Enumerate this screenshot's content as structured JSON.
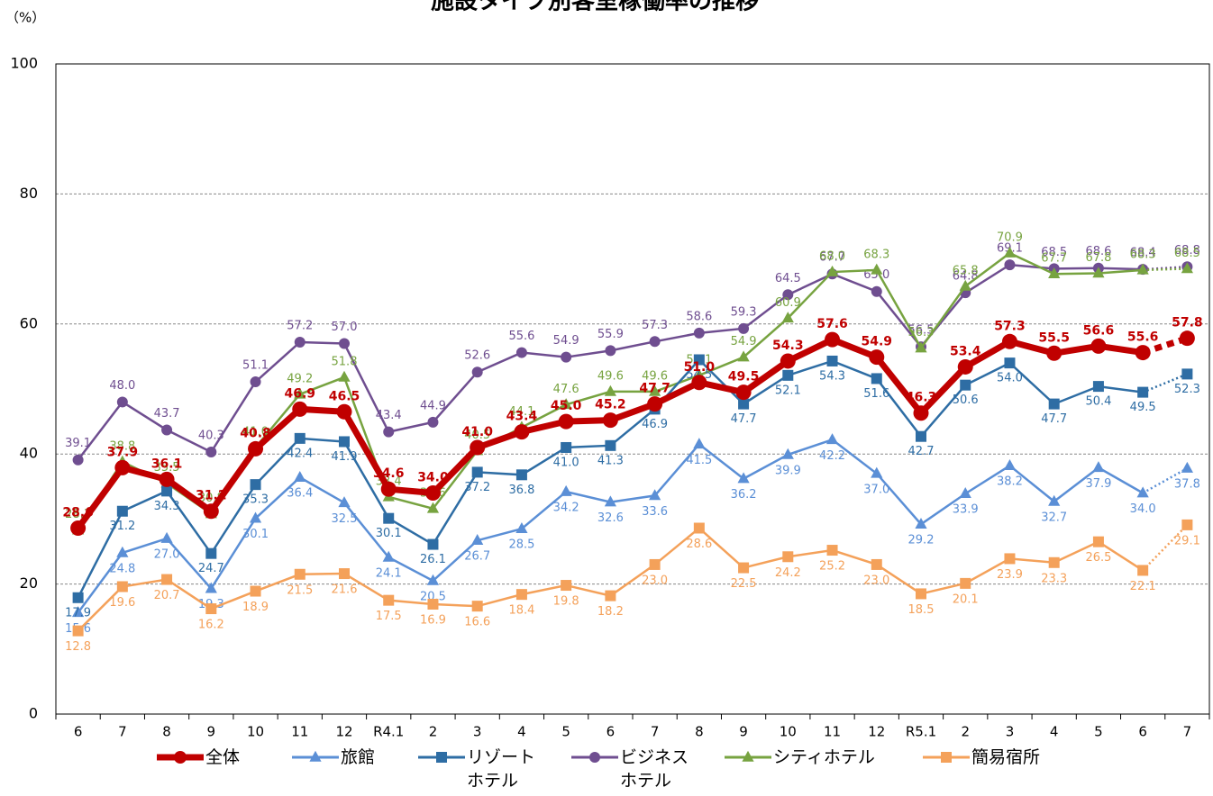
{
  "chart_data": {
    "type": "line",
    "title": "施設タイプ別客室稼働率の推移",
    "y_unit": "（%）",
    "categories": [
      "6",
      "7",
      "8",
      "9",
      "10",
      "11",
      "12",
      "R4.1",
      "2",
      "3",
      "4",
      "5",
      "6",
      "7",
      "8",
      "9",
      "10",
      "11",
      "12",
      "R5.1",
      "2",
      "3",
      "4",
      "5",
      "6",
      "7"
    ],
    "ylim": [
      0,
      100
    ],
    "yticks": [
      0,
      20,
      40,
      60,
      80,
      100
    ],
    "grid": true,
    "series": [
      {
        "name": "全体",
        "color": "#c00000",
        "marker": "circle",
        "values": [
          28.6,
          37.9,
          36.1,
          31.2,
          40.8,
          46.9,
          46.5,
          34.6,
          34.0,
          41.0,
          43.4,
          45.0,
          45.2,
          47.7,
          51.0,
          49.5,
          54.3,
          57.6,
          54.9,
          46.3,
          53.4,
          57.3,
          55.5,
          56.6,
          55.6,
          57.8
        ],
        "value_labels": [
          "28.6",
          "37.9",
          "36.1",
          "31.2",
          "40.8",
          "46.9",
          "46.5",
          "34.6",
          "34.0",
          "41.0",
          "43.4",
          "45.0",
          "45.2",
          "47.7",
          "51.0",
          "49.5",
          "54.3",
          "57.6",
          "54.9",
          "46.3",
          "53.4",
          "57.3",
          "55.5",
          "56.6",
          "55.6",
          "57.8"
        ]
      },
      {
        "name": "旅館",
        "color": "#5b8fd6",
        "marker": "triangle",
        "values": [
          15.6,
          24.8,
          27.0,
          19.3,
          30.1,
          36.4,
          32.5,
          24.1,
          20.5,
          26.7,
          28.5,
          34.2,
          32.6,
          33.6,
          41.5,
          36.2,
          39.9,
          42.2,
          37.0,
          29.2,
          33.9,
          38.2,
          32.7,
          37.9,
          34.0,
          37.8
        ],
        "value_labels": [
          "15.6",
          "24.8",
          "27.0",
          "19.3",
          "30.1",
          "36.4",
          "32.5",
          "24.1",
          "20.5",
          "26.7",
          "28.5",
          "34.2",
          "32.6",
          "33.6",
          "41.5",
          "36.2",
          "39.9",
          "42.2",
          "37.0",
          "29.2",
          "33.9",
          "38.2",
          "32.7",
          "37.9",
          "34.0",
          "37.8"
        ]
      },
      {
        "name": "リゾート\nホテル",
        "color": "#2e6da4",
        "marker": "square",
        "values": [
          17.9,
          31.2,
          34.3,
          24.7,
          35.3,
          42.4,
          41.9,
          30.1,
          26.1,
          37.2,
          36.8,
          41.0,
          41.3,
          46.9,
          54.5,
          47.7,
          52.1,
          54.3,
          51.6,
          42.7,
          50.6,
          54.0,
          47.7,
          50.4,
          49.5,
          52.3
        ],
        "value_labels": [
          "17.9",
          "31.2",
          "34.3",
          "24.7",
          "35.3",
          "42.4",
          "41.9",
          "30.1",
          "26.1",
          "37.2",
          "36.8",
          "41.0",
          "41.3",
          "46.9",
          "54.5",
          "47.7",
          "52.1",
          "54.3",
          "51.6",
          "42.7",
          "50.6",
          "54.0",
          "47.7",
          "50.4",
          "49.5",
          "52.3"
        ]
      },
      {
        "name": "ビジネス\nホテル",
        "color": "#6f4e90",
        "marker": "circle",
        "values": [
          39.1,
          48.0,
          43.7,
          40.3,
          51.1,
          57.2,
          57.0,
          43.4,
          44.9,
          52.6,
          55.6,
          54.9,
          55.9,
          57.3,
          58.6,
          59.3,
          64.5,
          67.7,
          65.0,
          56.5,
          64.8,
          69.1,
          68.5,
          68.6,
          68.4,
          68.8
        ],
        "value_labels": [
          "39.1",
          "48.0",
          "43.7",
          "40.3",
          "51.1",
          "57.2",
          "57.0",
          "43.4",
          "44.9",
          "52.6",
          "55.6",
          "54.9",
          "55.9",
          "57.3",
          "58.6",
          "59.3",
          "64.5",
          "67.7",
          "65.0",
          "56.5",
          "64.8",
          "69.1",
          "68.5",
          "68.6",
          "68.4",
          "68.8"
        ]
      },
      {
        "name": "シティホテル",
        "color": "#77a340",
        "marker": "triangle",
        "values": [
          28.3,
          38.8,
          35.5,
          30.8,
          41.0,
          49.2,
          51.8,
          33.4,
          31.6,
          40.5,
          44.1,
          47.6,
          49.6,
          49.6,
          52.1,
          54.9,
          60.9,
          68.0,
          68.3,
          56.3,
          65.8,
          70.9,
          67.7,
          67.8,
          68.3,
          68.5
        ],
        "value_labels": [
          "28.3",
          "38.8",
          "35.5",
          "30.8",
          "41.0",
          "49.2",
          "51.8",
          "33.4",
          "31.6",
          "40.5",
          "44.1",
          "47.6",
          "49.6",
          "49.6",
          "52.1",
          "54.9",
          "60.9",
          "68.0",
          "68.3",
          "56.3",
          "65.8",
          "70.9",
          "67.7",
          "67.8",
          "68.3",
          "68.5"
        ]
      },
      {
        "name": "簡易宿所",
        "color": "#f4a15a",
        "marker": "square",
        "values": [
          12.8,
          19.6,
          20.7,
          16.2,
          18.9,
          21.5,
          21.6,
          17.5,
          16.9,
          16.6,
          18.4,
          19.8,
          18.2,
          23.0,
          28.6,
          22.5,
          24.2,
          25.2,
          23.0,
          18.5,
          20.1,
          23.9,
          23.3,
          26.5,
          22.1,
          29.1
        ],
        "value_labels": [
          "12.8",
          "19.6",
          "20.7",
          "16.2",
          "18.9",
          "21.5",
          "21.6",
          "17.5",
          "16.9",
          "16.6",
          "18.4",
          "19.8",
          "18.2",
          "23.0",
          "28.6",
          "22.5",
          "24.2",
          "25.2",
          "23.0",
          "18.5",
          "20.1",
          "23.9",
          "23.3",
          "26.5",
          "22.1",
          "29.1"
        ]
      }
    ]
  }
}
